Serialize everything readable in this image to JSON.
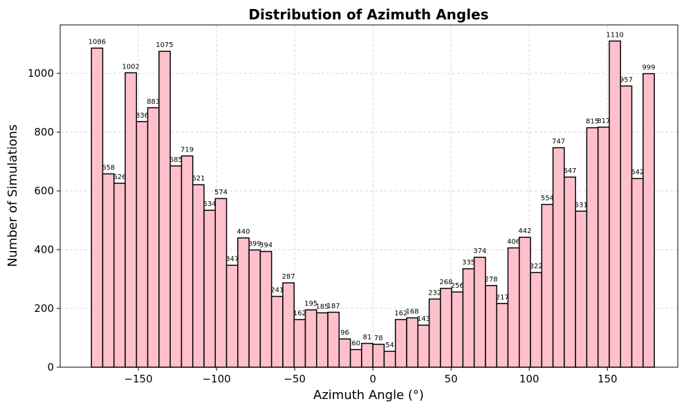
{
  "chart_data": {
    "type": "bar",
    "title": "Distribution of Azimuth Angles",
    "xlabel": "Azimuth Angle (°)",
    "ylabel": "Number of Simulations",
    "xlim": [
      -200,
      195
    ],
    "ylim": [
      0,
      1165
    ],
    "bin_width": 7.2,
    "bin_start": -180,
    "values": [
      1086,
      658,
      626,
      1002,
      836,
      883,
      1075,
      685,
      719,
      621,
      534,
      574,
      347,
      440,
      399,
      394,
      241,
      287,
      162,
      195,
      185,
      187,
      96,
      60,
      81,
      78,
      54,
      162,
      168,
      143,
      232,
      268,
      256,
      335,
      374,
      278,
      217,
      406,
      442,
      322,
      554,
      747,
      647,
      531,
      815,
      817,
      1110,
      957,
      642,
      999
    ],
    "x_ticks": [
      -150,
      -100,
      -50,
      0,
      50,
      100,
      150
    ],
    "x_tick_labels": [
      "−150",
      "−100",
      "−50",
      "0",
      "50",
      "100",
      "150"
    ],
    "y_ticks": [
      0,
      200,
      400,
      600,
      800,
      1000
    ],
    "y_tick_labels": [
      "0",
      "200",
      "400",
      "600",
      "800",
      "1000"
    ],
    "grid": true,
    "bar_color": "#ffc0cb",
    "edge_color": "#000000"
  }
}
